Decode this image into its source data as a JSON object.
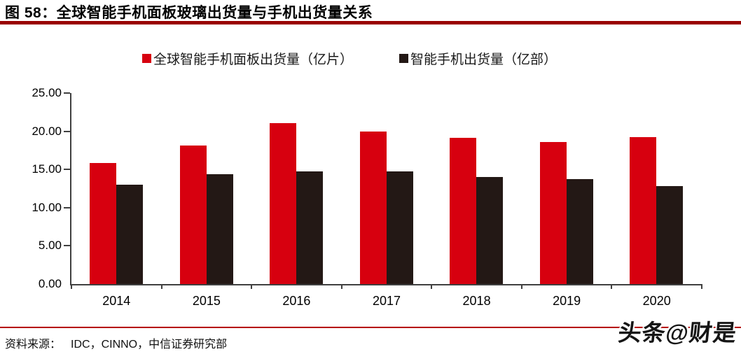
{
  "header": {
    "title": "图 58：全球智能手机面板玻璃出货量与手机出货量关系"
  },
  "footer": {
    "source_label": "资料来源：",
    "source_text": "IDC，CINNO，中信证券研究部",
    "watermark": "头条@财是"
  },
  "colors": {
    "bar_red": "#d7000f",
    "bar_black": "#231815",
    "title_rule": "#990000",
    "bottom_rule": "#b50000",
    "axis": "#404040"
  },
  "chart_data": {
    "type": "bar",
    "title": "图 58：全球智能手机面板玻璃出货量与手机出货量关系",
    "categories": [
      "2014",
      "2015",
      "2016",
      "2017",
      "2018",
      "2019",
      "2020"
    ],
    "series": [
      {
        "name": "全球智能手机面板出货量（亿片）",
        "color": "#d7000f",
        "values": [
          15.8,
          18.1,
          21.1,
          20.0,
          19.1,
          18.6,
          19.2
        ]
      },
      {
        "name": "智能手机出货量（亿部）",
        "color": "#231815",
        "values": [
          13.0,
          14.4,
          14.7,
          14.7,
          14.0,
          13.7,
          12.8
        ]
      }
    ],
    "xlabel": "",
    "ylabel": "",
    "ylim": [
      0,
      25
    ],
    "ytick_labels": [
      "0.00",
      "5.00",
      "10.00",
      "15.00",
      "20.00",
      "25.00"
    ],
    "grid": false,
    "legend_position": "top"
  }
}
